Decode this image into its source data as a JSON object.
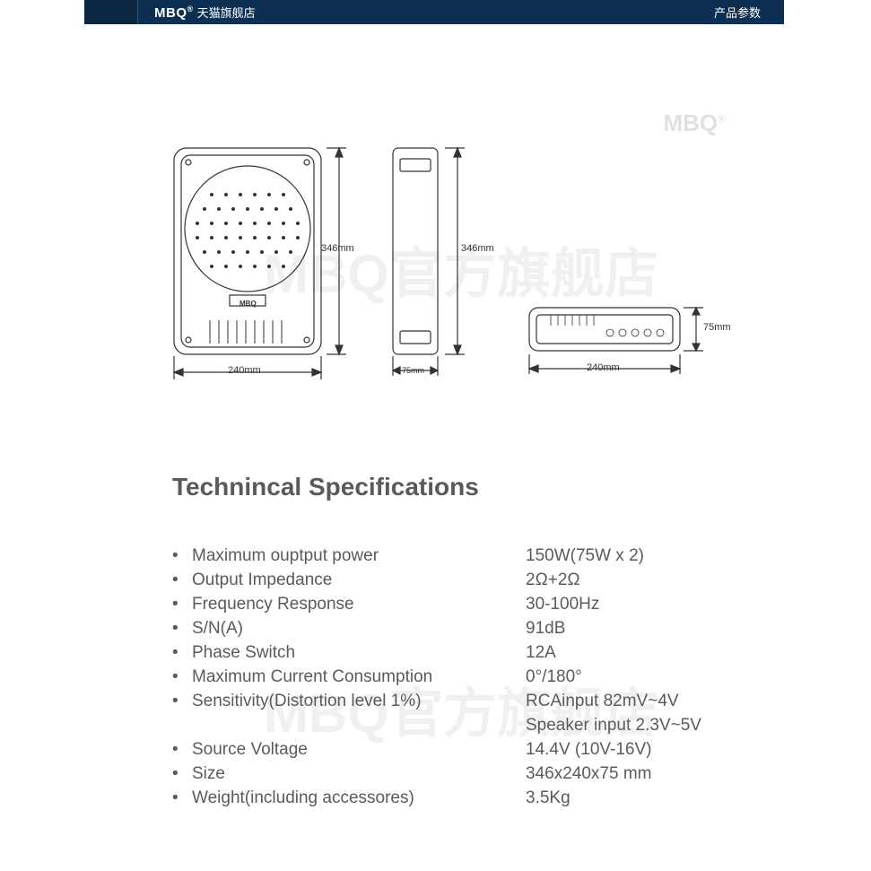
{
  "header": {
    "brand": "MBQ",
    "brand_suffix": "®",
    "store": "天猫旗舰店",
    "right_label": "产品参数",
    "bg_color": "#0d2f52"
  },
  "watermark": {
    "text": "MBQ官方旗舰店",
    "brand": "MBQ",
    "brand_suffix": "®"
  },
  "dimensions": {
    "front_width": "240mm",
    "front_height": "346mm",
    "side_height": "346mm",
    "side_width": "75mm",
    "top_width": "240mm",
    "top_height": "75mm",
    "product_label": "MBQ"
  },
  "specs": {
    "title": "Technincal Specifications",
    "rows": [
      {
        "label": "Maximum ouptput power",
        "value": "150W(75W x 2)"
      },
      {
        "label": "Output Impedance",
        "value": "2Ω+2Ω"
      },
      {
        "label": "Frequency Response",
        "value": "30-100Hz"
      },
      {
        "label": "S/N(A)",
        "value": "91dB"
      },
      {
        "label": "Phase Switch",
        "value": "12A"
      },
      {
        "label": "Maximum Current Consumption",
        "value": "0°/180°"
      },
      {
        "label": "Sensitivity(Distortion level 1%)",
        "value": "RCAinput 82mV~4V",
        "value2": "Speaker input 2.3V~5V"
      },
      {
        "label": "Source Voltage",
        "value": "14.4V (10V-16V)"
      },
      {
        "label": "Size",
        "value": "346x240x75 mm"
      },
      {
        "label": "Weight(including accessores)",
        "value": "3.5Kg"
      }
    ]
  }
}
